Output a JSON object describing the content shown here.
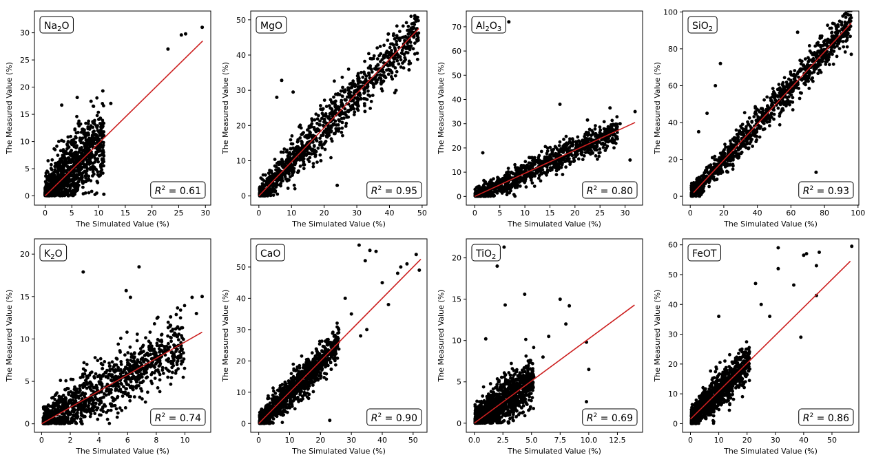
{
  "figure": {
    "xlabel": "The Simulated Value (%)",
    "ylabel": "The Measured Value (%)",
    "point_color": "#000000",
    "fit_line_color": "#cc1f1f"
  },
  "chart_data": [
    {
      "type": "scatter",
      "oxide_main": "Na",
      "oxide_sub": "2",
      "oxide_tail": "O",
      "r2_label": "= 0.61",
      "xlim": [
        -2,
        31
      ],
      "ylim": [
        -1.7,
        34
      ],
      "xticks": [
        0,
        5,
        10,
        15,
        20,
        25,
        30
      ],
      "yticks": [
        0,
        5,
        10,
        15,
        20,
        25,
        30
      ],
      "fit_line": [
        [
          0,
          0
        ],
        [
          29.5,
          28.5
        ]
      ],
      "x_max_dense": 11,
      "y_spread": 3.2,
      "outliers": [
        [
          10.8,
          19.3
        ],
        [
          12.3,
          17.0
        ],
        [
          8.6,
          17.4
        ],
        [
          6.0,
          18.1
        ],
        [
          3.1,
          16.7
        ],
        [
          23.0,
          27.0
        ],
        [
          25.5,
          29.6
        ],
        [
          26.3,
          29.8
        ],
        [
          29.4,
          31.0
        ],
        [
          11.0,
          0.3
        ]
      ]
    },
    {
      "type": "scatter",
      "oxide_main": "MgO",
      "oxide_sub": "",
      "oxide_tail": "",
      "r2_label": "= 0.95",
      "xlim": [
        -2.5,
        51.5
      ],
      "ylim": [
        -2.6,
        52.5
      ],
      "xticks": [
        0,
        10,
        20,
        30,
        40,
        50
      ],
      "yticks": [
        0,
        10,
        20,
        30,
        40,
        50
      ],
      "fit_line": [
        [
          0,
          0
        ],
        [
          49,
          47.5
        ]
      ],
      "x_max_dense": 49,
      "y_spread": 3.5,
      "outliers": [
        [
          7.0,
          32.8
        ],
        [
          32.5,
          24.0
        ],
        [
          10.5,
          29.5
        ],
        [
          19.0,
          10.0
        ],
        [
          24.0,
          3.0
        ],
        [
          42.0,
          30.0
        ],
        [
          46.0,
          35.8
        ],
        [
          48.5,
          40.5
        ],
        [
          5.5,
          28.0
        ]
      ]
    },
    {
      "type": "scatter",
      "oxide_main": "Al",
      "oxide_sub": "2",
      "oxide_tail": "O",
      "oxide_sub2": "3",
      "r2_label": "= 0.80",
      "xlim": [
        -1.7,
        33.5
      ],
      "ylim": [
        -3.6,
        76.5
      ],
      "xticks": [
        0,
        5,
        10,
        15,
        20,
        25,
        30
      ],
      "yticks": [
        0,
        10,
        20,
        30,
        40,
        50,
        60,
        70
      ],
      "fit_line": [
        [
          0,
          0
        ],
        [
          32,
          30.5
        ]
      ],
      "x_max_dense": 28.5,
      "y_spread": 2.8,
      "outliers": [
        [
          6.8,
          72.0
        ],
        [
          17.0,
          38.0
        ],
        [
          29.0,
          30.0
        ],
        [
          32.0,
          35.0
        ],
        [
          27.0,
          36.5
        ],
        [
          1.6,
          18.0
        ],
        [
          31.0,
          15.0
        ],
        [
          26.0,
          25.0
        ],
        [
          22.5,
          31.5
        ]
      ]
    },
    {
      "type": "scatter",
      "oxide_main": "SiO",
      "oxide_sub": "2",
      "oxide_tail": "",
      "r2_label": "= 0.93",
      "xlim": [
        -4.6,
        100.5
      ],
      "ylim": [
        -4.8,
        100.5
      ],
      "xticks": [
        0,
        20,
        40,
        60,
        80,
        100
      ],
      "yticks": [
        0,
        20,
        40,
        60,
        80,
        100
      ],
      "fit_line": [
        [
          2,
          2
        ],
        [
          96,
          94
        ]
      ],
      "x_max_dense": 96,
      "y_spread": 4.5,
      "outliers": [
        [
          18.0,
          72.0
        ],
        [
          5.0,
          35.0
        ],
        [
          10.0,
          45.0
        ],
        [
          75.0,
          13.0
        ],
        [
          96.0,
          77.0
        ],
        [
          2.0,
          1.0
        ],
        [
          4.0,
          3.0
        ],
        [
          15.0,
          60.0
        ],
        [
          64.0,
          89.0
        ],
        [
          88.0,
          93.0
        ]
      ]
    },
    {
      "type": "scatter",
      "oxide_main": "K",
      "oxide_sub": "2",
      "oxide_tail": "O",
      "r2_label": "= 0.74",
      "xlim": [
        -0.5,
        11.8
      ],
      "ylim": [
        -1.0,
        21.8
      ],
      "xticks": [
        0,
        2,
        4,
        6,
        8,
        10
      ],
      "yticks": [
        0,
        5,
        10,
        15,
        20
      ],
      "fit_line": [
        [
          0,
          0
        ],
        [
          11.2,
          10.8
        ]
      ],
      "x_max_dense": 10,
      "y_spread": 1.8,
      "outliers": [
        [
          2.9,
          17.9
        ],
        [
          6.8,
          18.5
        ],
        [
          5.9,
          15.7
        ],
        [
          10.5,
          14.9
        ],
        [
          11.2,
          15.0
        ],
        [
          6.2,
          14.9
        ],
        [
          9.0,
          12.6
        ],
        [
          10.8,
          13.0
        ],
        [
          7.5,
          9.0
        ]
      ]
    },
    {
      "type": "scatter",
      "oxide_main": "CaO",
      "oxide_sub": "",
      "oxide_tail": "",
      "r2_label": "= 0.90",
      "xlim": [
        -2.6,
        54.5
      ],
      "ylim": [
        -2.8,
        59.0
      ],
      "xticks": [
        0,
        10,
        20,
        30,
        40,
        50
      ],
      "yticks": [
        0,
        10,
        20,
        30,
        40,
        50
      ],
      "fit_line": [
        [
          0,
          0
        ],
        [
          52.5,
          52.5
        ]
      ],
      "x_max_dense": 26,
      "y_spread": 2.8,
      "outliers": [
        [
          32.5,
          57.0
        ],
        [
          36.0,
          55.3
        ],
        [
          38.0,
          55.0
        ],
        [
          34.5,
          52.0
        ],
        [
          40.0,
          45.0
        ],
        [
          45.0,
          48.0
        ],
        [
          48.0,
          51.0
        ],
        [
          51.0,
          54.0
        ],
        [
          52.0,
          49.0
        ],
        [
          30.0,
          35.0
        ],
        [
          35.0,
          30.0
        ],
        [
          28.0,
          40.0
        ],
        [
          42.0,
          38.0
        ],
        [
          33.0,
          28.0
        ],
        [
          46.0,
          50.0
        ],
        [
          23.0,
          1.0
        ]
      ]
    },
    {
      "type": "scatter",
      "oxide_main": "TiO",
      "oxide_sub": "2",
      "oxide_tail": "",
      "r2_label": "= 0.69",
      "xlim": [
        -0.7,
        14.7
      ],
      "ylim": [
        -1.1,
        22.3
      ],
      "xticks": [
        0.0,
        2.5,
        5.0,
        7.5,
        10.0,
        12.5
      ],
      "xtick_labels": [
        "0.0",
        "2.5",
        "5.0",
        "7.5",
        "10.0",
        "12.5"
      ],
      "yticks": [
        0,
        5,
        10,
        15,
        20
      ],
      "fit_line": [
        [
          0,
          0
        ],
        [
          14.0,
          14.3
        ]
      ],
      "x_max_dense": 5.2,
      "y_spread": 1.4,
      "outliers": [
        [
          2.6,
          21.3
        ],
        [
          2.0,
          19.0
        ],
        [
          4.4,
          15.6
        ],
        [
          2.7,
          14.3
        ],
        [
          7.5,
          15.0
        ],
        [
          8.3,
          14.2
        ],
        [
          9.8,
          9.8
        ],
        [
          10.0,
          6.5
        ],
        [
          9.8,
          2.6
        ],
        [
          10.5,
          0.8
        ],
        [
          8.0,
          12.0
        ],
        [
          6.5,
          10.5
        ],
        [
          6.0,
          8.0
        ],
        [
          1.0,
          10.2
        ]
      ]
    },
    {
      "type": "scatter",
      "oxide_main": "FeOT",
      "oxide_sub": "",
      "oxide_tail": "",
      "r2_label": "= 0.86",
      "xlim": [
        -2.8,
        59.5
      ],
      "ylim": [
        -2.9,
        62.0
      ],
      "xticks": [
        0,
        10,
        20,
        30,
        40,
        50
      ],
      "yticks": [
        0,
        10,
        20,
        30,
        40,
        50,
        60
      ],
      "fit_line": [
        [
          0,
          1.5
        ],
        [
          56.5,
          54.5
        ]
      ],
      "x_max_dense": 21,
      "y_spread": 3.0,
      "outliers": [
        [
          31.0,
          59.0
        ],
        [
          57.0,
          59.5
        ],
        [
          40.0,
          56.5
        ],
        [
          45.5,
          57.5
        ],
        [
          41.0,
          57.0
        ],
        [
          44.5,
          53.0
        ],
        [
          36.5,
          46.5
        ],
        [
          31.0,
          52.0
        ],
        [
          44.5,
          43.0
        ],
        [
          39.0,
          29.0
        ],
        [
          23.0,
          47.0
        ],
        [
          28.0,
          36.0
        ],
        [
          25.0,
          40.0
        ],
        [
          10.0,
          36.0
        ]
      ]
    }
  ]
}
